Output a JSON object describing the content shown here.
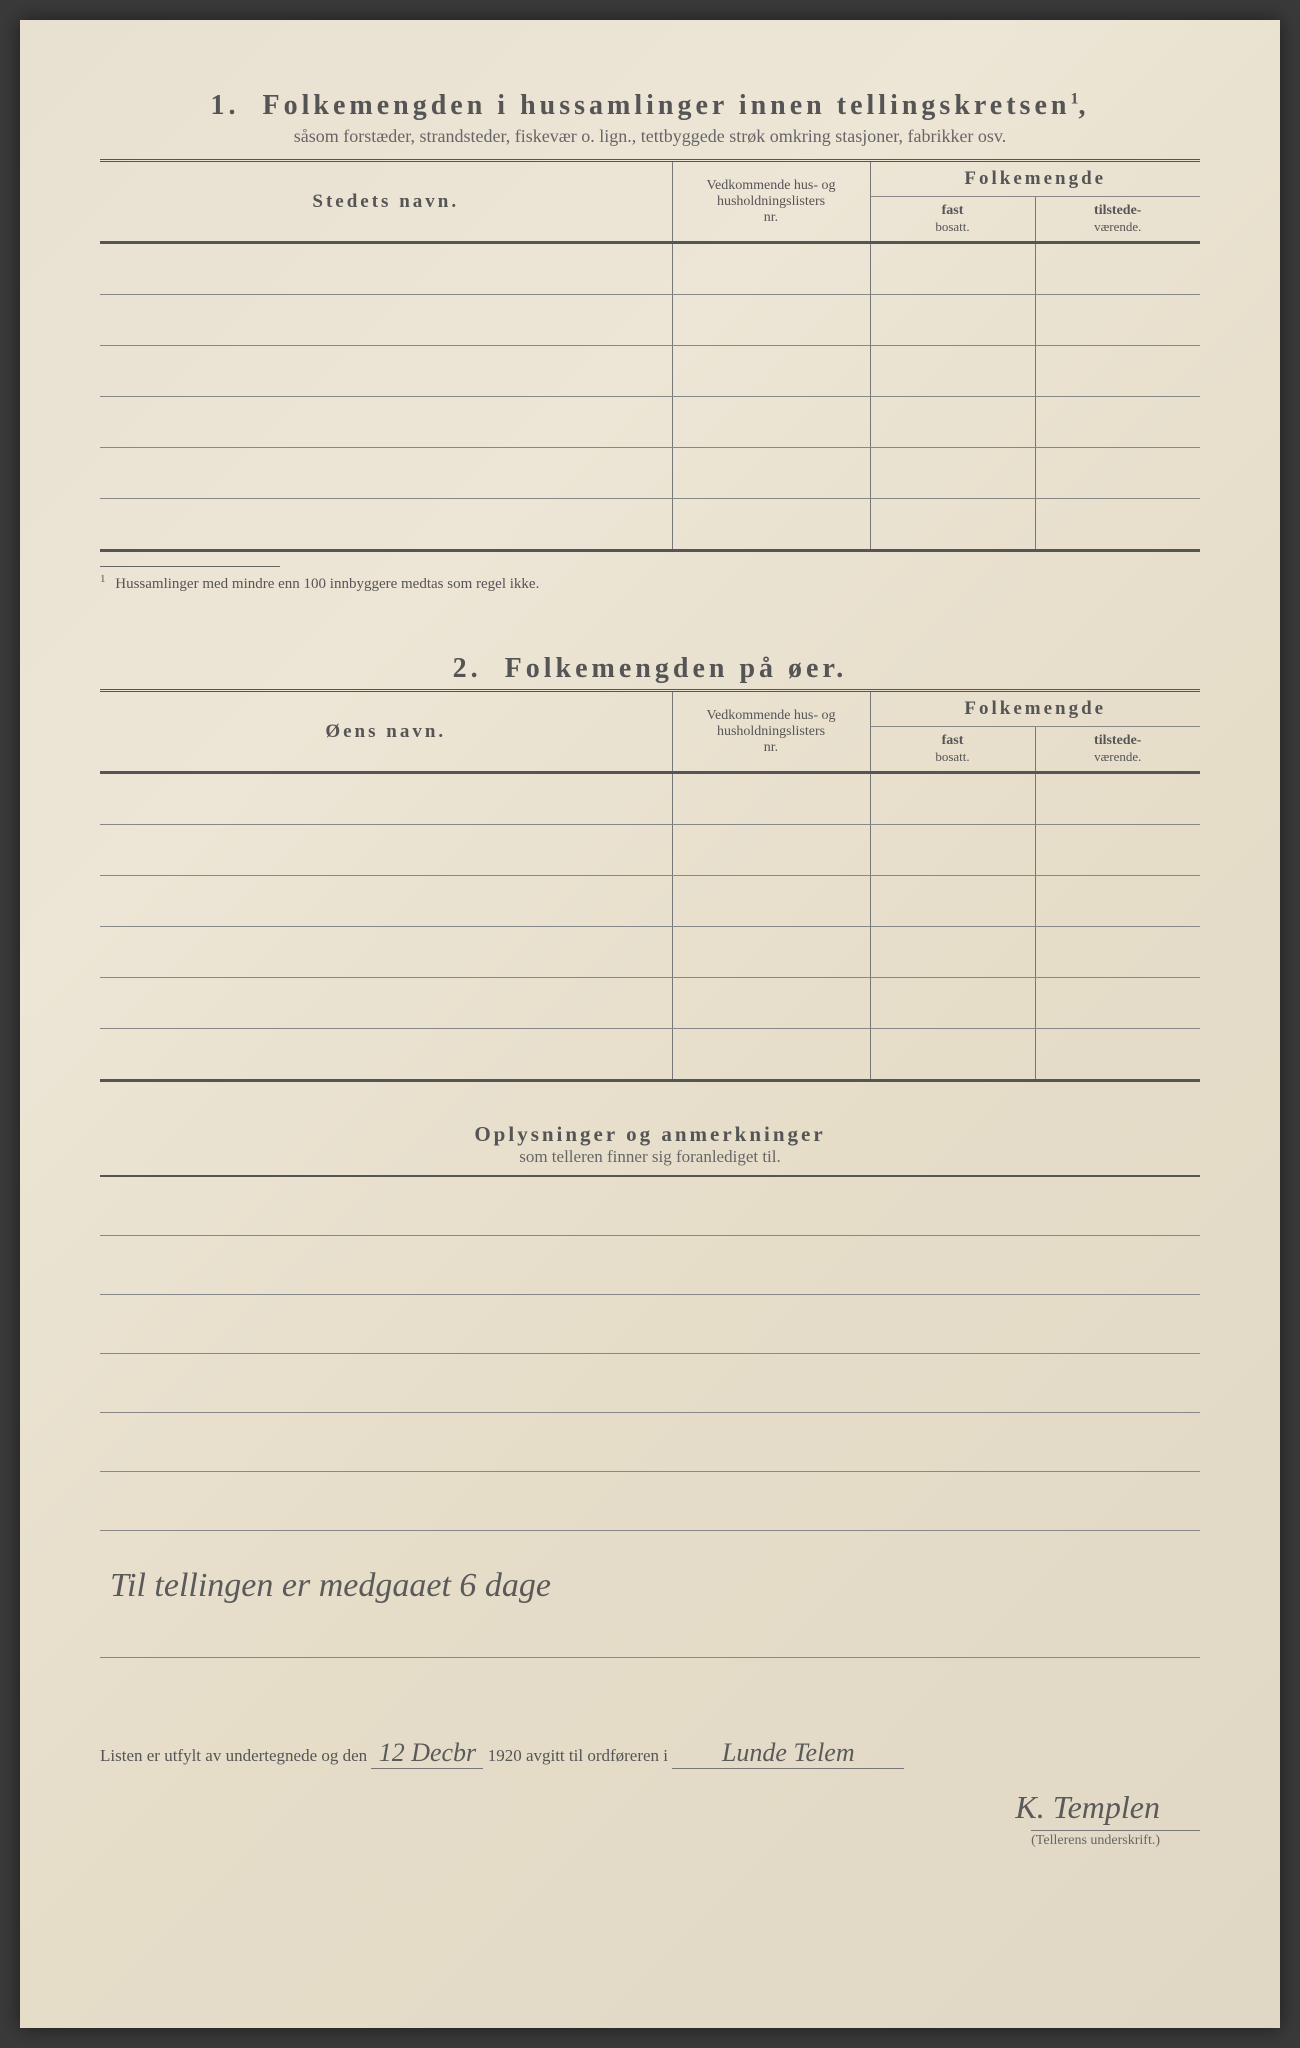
{
  "section1": {
    "number": "1.",
    "title": "Folkemengden i hussamlinger innen tellingskretsen",
    "title_sup": "1",
    "title_suffix": ",",
    "subtitle": "såsom forstæder, strandsteder, fiskevær o. lign., tettbyggede strøk omkring stasjoner, fabrikker osv.",
    "col_name": "Stedets navn.",
    "col_nr_line1": "Vedkommende hus- og",
    "col_nr_line2": "husholdningslisters",
    "col_nr_line3": "nr.",
    "col_folk": "Folkemengde",
    "col_fast_line1": "fast",
    "col_fast_line2": "bosatt.",
    "col_til_line1": "tilstede-",
    "col_til_line2": "værende.",
    "footnote_sup": "1",
    "footnote": "Hussamlinger med mindre enn 100 innbyggere medtas som regel ikke."
  },
  "section2": {
    "number": "2.",
    "title": "Folkemengden på øer.",
    "col_name": "Øens navn.",
    "col_nr_line1": "Vedkommende hus- og",
    "col_nr_line2": "husholdningslisters",
    "col_nr_line3": "nr.",
    "col_folk": "Folkemengde",
    "col_fast_line1": "fast",
    "col_fast_line2": "bosatt.",
    "col_til_line1": "tilstede-",
    "col_til_line2": "værende."
  },
  "section3": {
    "title": "Oplysninger og anmerkninger",
    "subtitle": "som telleren finner sig foranlediget til.",
    "handwritten_note": "Til tellingen er medgaaet 6 dage"
  },
  "signature": {
    "prefix": "Listen er utfylt av undertegnede og den",
    "date_day": "12",
    "date_month": "Decbr",
    "year": "1920",
    "middle": "avgitt til ordføreren i",
    "place": "Lunde Telem",
    "name": "K. Templen",
    "label": "(Tellerens underskrift.)"
  }
}
